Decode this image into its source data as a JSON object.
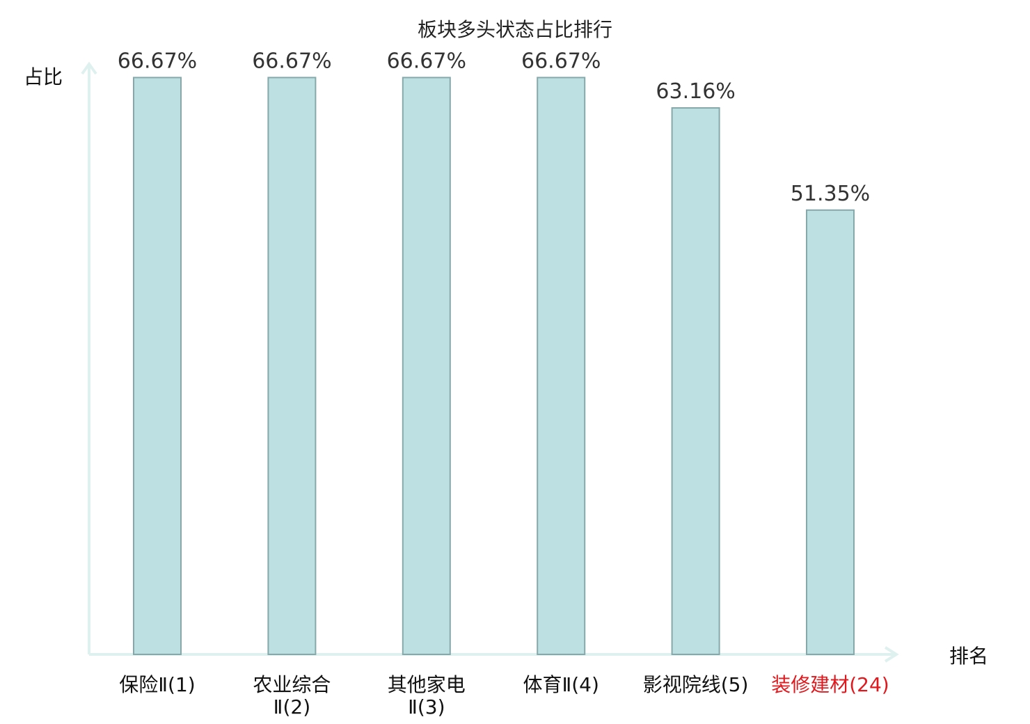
{
  "chart_data": {
    "type": "bar",
    "title": "板块多头状态占比排行",
    "ylabel": "占比",
    "xlabel": "排名",
    "ylim": [
      0,
      70
    ],
    "grid": false,
    "legend": "none",
    "bar_color": "#bde1e3",
    "bar_edge_color": "#86a8aa",
    "axis_color": "#dff1ef",
    "highlight_color": "#e0191e",
    "categories": [
      {
        "lines": [
          "保险Ⅱ(1)"
        ],
        "highlight": false
      },
      {
        "lines": [
          "农业综合",
          "Ⅱ(2)"
        ],
        "highlight": false
      },
      {
        "lines": [
          "其他家电",
          "Ⅱ(3)"
        ],
        "highlight": false
      },
      {
        "lines": [
          "体育Ⅱ(4)"
        ],
        "highlight": false
      },
      {
        "lines": [
          "影视院线(5)"
        ],
        "highlight": false
      },
      {
        "lines": [
          "装修建材(24)"
        ],
        "highlight": true
      }
    ],
    "values": [
      66.67,
      66.67,
      66.67,
      66.67,
      63.16,
      51.35
    ],
    "value_labels": [
      "66.67%",
      "66.67%",
      "66.67%",
      "66.67%",
      "63.16%",
      "51.35%"
    ]
  }
}
